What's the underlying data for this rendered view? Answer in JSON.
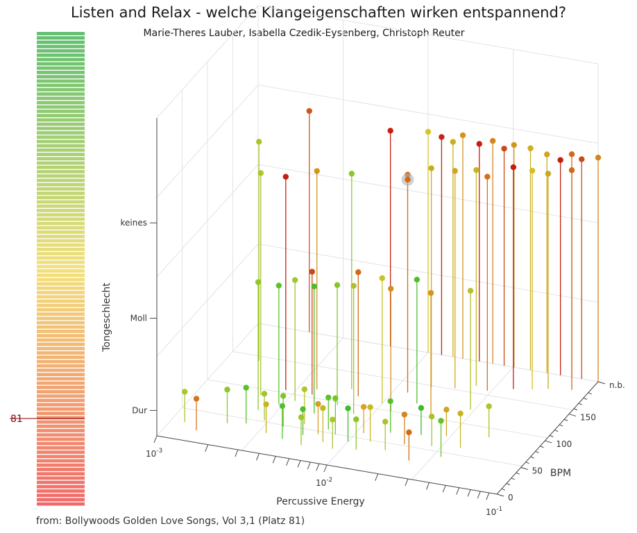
{
  "title": "Listen and Relax - welche Klangeigenschaften wirken entspannend?",
  "subtitle": "Marie-Theres Lauber, Isabella Czedik-Eysenberg, Christoph Reuter",
  "footer": "from: Bollywoods Golden Love Songs, Vol 3,1 (Platz 81)",
  "colorbar": {
    "marker_label": "81",
    "marker_fraction_from_top": 0.88,
    "top_color": "#5fbf6f",
    "mid_color": "#f3e07a",
    "bottom_color": "#f06a6a"
  },
  "chart_data": {
    "type": "scatter",
    "subtype": "3d-stem",
    "xlabel": "Percussive Energy",
    "ylabel": "BPM",
    "zlabel": "Tongeschlecht",
    "x_scale": "log",
    "x_ticks": [
      "10^-3",
      "10^-2",
      "10^-1"
    ],
    "x_tick_labels": [
      {
        "base": "10",
        "exp": "-3"
      },
      {
        "base": "10",
        "exp": "-2"
      },
      {
        "base": "10",
        "exp": "-1"
      }
    ],
    "y_ticks": [
      "0",
      "50",
      "100",
      "150",
      "n.b."
    ],
    "z_ticks": [
      "Dur",
      "Moll",
      "keines"
    ],
    "highlight": {
      "rank": 81,
      "x": 0.012,
      "y": 140,
      "z": "keines"
    },
    "points": [
      {
        "x": 0.0012,
        "y": 30,
        "z": "Dur",
        "c": "#a6c92a"
      },
      {
        "x": 0.0015,
        "y": 20,
        "z": "Dur",
        "c": "#d4751c"
      },
      {
        "x": 0.002,
        "y": 40,
        "z": "Dur",
        "c": "#8fc72b"
      },
      {
        "x": 0.0025,
        "y": 45,
        "z": "Dur",
        "c": "#58c22c"
      },
      {
        "x": 0.003,
        "y": 55,
        "z": "Dur",
        "c": "#a3c52a"
      },
      {
        "x": 0.0035,
        "y": 35,
        "z": "Dur",
        "c": "#c9b321"
      },
      {
        "x": 0.004,
        "y": 50,
        "z": "Dur",
        "c": "#7cc52c"
      },
      {
        "x": 0.0045,
        "y": 30,
        "z": "Dur",
        "c": "#54c02c"
      },
      {
        "x": 0.005,
        "y": 60,
        "z": "Dur",
        "c": "#b6c42a"
      },
      {
        "x": 0.0055,
        "y": 42,
        "z": "Dur",
        "c": "#50be2b"
      },
      {
        "x": 0.006,
        "y": 25,
        "z": "Dur",
        "c": "#9fc62a"
      },
      {
        "x": 0.0065,
        "y": 48,
        "z": "Dur",
        "c": "#d79c20"
      },
      {
        "x": 0.007,
        "y": 58,
        "z": "Dur",
        "c": "#5fc02b"
      },
      {
        "x": 0.0075,
        "y": 36,
        "z": "Dur",
        "c": "#c4b724"
      },
      {
        "x": 0.008,
        "y": 52,
        "z": "Dur",
        "c": "#77c42b"
      },
      {
        "x": 0.009,
        "y": 28,
        "z": "Dur",
        "c": "#a9c62a"
      },
      {
        "x": 0.01,
        "y": 44,
        "z": "Dur",
        "c": "#3fbb2c"
      },
      {
        "x": 0.011,
        "y": 62,
        "z": "Dur",
        "c": "#d7a21f"
      },
      {
        "x": 0.012,
        "y": 33,
        "z": "Dur",
        "c": "#8cc52a"
      },
      {
        "x": 0.013,
        "y": 50,
        "z": "Dur",
        "c": "#c9b922"
      },
      {
        "x": 0.015,
        "y": 70,
        "z": "Dur",
        "c": "#57c02c"
      },
      {
        "x": 0.017,
        "y": 40,
        "z": "Dur",
        "c": "#b1c12a"
      },
      {
        "x": 0.02,
        "y": 55,
        "z": "Dur",
        "c": "#d4861d"
      },
      {
        "x": 0.022,
        "y": 75,
        "z": "Dur",
        "c": "#3fba2c"
      },
      {
        "x": 0.025,
        "y": 30,
        "z": "Dur",
        "c": "#d06a1a"
      },
      {
        "x": 0.028,
        "y": 60,
        "z": "Dur",
        "c": "#a6c42a"
      },
      {
        "x": 0.03,
        "y": 80,
        "z": "Dur",
        "c": "#d0a41f"
      },
      {
        "x": 0.035,
        "y": 45,
        "z": "Dur",
        "c": "#64c12b"
      },
      {
        "x": 0.04,
        "y": 65,
        "z": "Dur",
        "c": "#c6b522"
      },
      {
        "x": 0.05,
        "y": 90,
        "z": "Dur",
        "c": "#a8c52a"
      },
      {
        "x": 0.0025,
        "y": 70,
        "z": "Moll",
        "c": "#8fc72b"
      },
      {
        "x": 0.003,
        "y": 85,
        "z": "Moll",
        "c": "#59c22c"
      },
      {
        "x": 0.0035,
        "y": 95,
        "z": "Moll",
        "c": "#9fc62a"
      },
      {
        "x": 0.004,
        "y": 110,
        "z": "Moll",
        "c": "#c94a19"
      },
      {
        "x": 0.005,
        "y": 80,
        "z": "Moll",
        "c": "#4dbd2c"
      },
      {
        "x": 0.006,
        "y": 100,
        "z": "Moll",
        "c": "#8ac52a"
      },
      {
        "x": 0.007,
        "y": 120,
        "z": "Moll",
        "c": "#d06a1a"
      },
      {
        "x": 0.008,
        "y": 90,
        "z": "Moll",
        "c": "#b4bf26"
      },
      {
        "x": 0.01,
        "y": 115,
        "z": "Moll",
        "c": "#c8c224"
      },
      {
        "x": 0.012,
        "y": 105,
        "z": "Moll",
        "c": "#d28f1e"
      },
      {
        "x": 0.015,
        "y": 125,
        "z": "Moll",
        "c": "#4fbe2c"
      },
      {
        "x": 0.02,
        "y": 110,
        "z": "Moll",
        "c": "#d2951e"
      },
      {
        "x": 0.03,
        "y": 130,
        "z": "Moll",
        "c": "#b5c02a"
      },
      {
        "x": 0.0022,
        "y": 95,
        "z": "keines",
        "c": "#a9c62a"
      },
      {
        "x": 0.0028,
        "y": 110,
        "z": "keines",
        "c": "#c61d10"
      },
      {
        "x": 0.004,
        "y": 120,
        "z": "keines",
        "c": "#d2951e"
      },
      {
        "x": 0.006,
        "y": 130,
        "z": "keines",
        "c": "#8fc72b"
      },
      {
        "x": 0.0015,
        "y": 150,
        "z": "keines",
        "c": "#a9c62a"
      },
      {
        "x": 0.012,
        "y": 140,
        "z": "keines",
        "c": "#d06a1a"
      },
      {
        "x": 0.015,
        "y": 155,
        "z": "keines",
        "c": "#c8ab20"
      },
      {
        "x": 0.02,
        "y": 160,
        "z": "keines",
        "c": "#d0a41f"
      },
      {
        "x": 0.025,
        "y": 170,
        "z": "keines",
        "c": "#c6b522"
      },
      {
        "x": 0.03,
        "y": 165,
        "z": "keines",
        "c": "#d3701b"
      },
      {
        "x": 0.04,
        "y": 175,
        "z": "keines",
        "c": "#c61d10"
      },
      {
        "x": 0.05,
        "y": 180,
        "z": "keines",
        "c": "#d5bd22"
      },
      {
        "x": 0.06,
        "y": 185,
        "z": "keines",
        "c": "#c6a91f"
      },
      {
        "x": 0.08,
        "y": 190,
        "z": "keines",
        "c": "#d06a1a"
      },
      {
        "x": 0.002,
        "y": "n.b.",
        "z": "keines",
        "c": "#d0571a"
      },
      {
        "x": 0.006,
        "y": "n.b.",
        "z": "keines",
        "c": "#c61d10"
      },
      {
        "x": 0.01,
        "y": "n.b.",
        "z": "keines",
        "c": "#d7c322"
      },
      {
        "x": 0.012,
        "y": "n.b.",
        "z": "keines",
        "c": "#c22515"
      },
      {
        "x": 0.014,
        "y": "n.b.",
        "z": "keines",
        "c": "#c8b022"
      },
      {
        "x": 0.016,
        "y": "n.b.",
        "z": "keines",
        "c": "#d2951e"
      },
      {
        "x": 0.02,
        "y": "n.b.",
        "z": "keines",
        "c": "#c61d10"
      },
      {
        "x": 0.024,
        "y": "n.b.",
        "z": "keines",
        "c": "#d4861d"
      },
      {
        "x": 0.028,
        "y": "n.b.",
        "z": "keines",
        "c": "#c94a19"
      },
      {
        "x": 0.032,
        "y": "n.b.",
        "z": "keines",
        "c": "#d2951e"
      },
      {
        "x": 0.04,
        "y": "n.b.",
        "z": "keines",
        "c": "#c8b022"
      },
      {
        "x": 0.05,
        "y": "n.b.",
        "z": "keines",
        "c": "#d0a41f"
      },
      {
        "x": 0.06,
        "y": "n.b.",
        "z": "keines",
        "c": "#c61d10"
      },
      {
        "x": 0.07,
        "y": "n.b.",
        "z": "keines",
        "c": "#d06a1a"
      },
      {
        "x": 0.08,
        "y": "n.b.",
        "z": "keines",
        "c": "#c94a19"
      },
      {
        "x": 0.1,
        "y": "n.b.",
        "z": "keines",
        "c": "#d4861d"
      }
    ]
  }
}
